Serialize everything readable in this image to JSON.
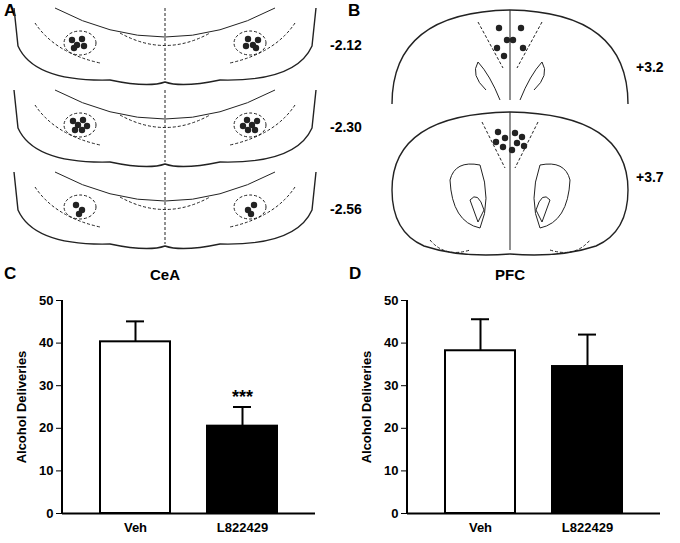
{
  "diagrams": [
    {
      "panel": "A",
      "sections": [
        "-2.12",
        "-2.30",
        "-2.56"
      ]
    },
    {
      "panel": "B",
      "sections": [
        "+3.2",
        "+3.7"
      ]
    }
  ],
  "chart_data": [
    {
      "panel": "C",
      "type": "bar",
      "title": "CeA",
      "y_label": "Alcohol Deliveries",
      "categories": [
        "Veh",
        "L822429"
      ],
      "values": [
        40.3,
        20.5
      ],
      "errors": [
        4.8,
        4.5
      ],
      "colors": [
        "#ffffff",
        "#000000"
      ],
      "ylim": [
        0,
        50
      ],
      "yticks": [
        0,
        10,
        20,
        30,
        40,
        50
      ],
      "annotations": [
        {
          "category": "L822429",
          "text": "***"
        }
      ]
    },
    {
      "panel": "D",
      "type": "bar",
      "title": "PFC",
      "y_label": "Alcohol Deliveries",
      "categories": [
        "Veh",
        "L822429"
      ],
      "values": [
        38.2,
        34.5
      ],
      "errors": [
        7.4,
        7.5
      ],
      "colors": [
        "#ffffff",
        "#000000"
      ],
      "ylim": [
        0,
        50
      ],
      "yticks": [
        0,
        10,
        20,
        30,
        40,
        50
      ]
    }
  ]
}
